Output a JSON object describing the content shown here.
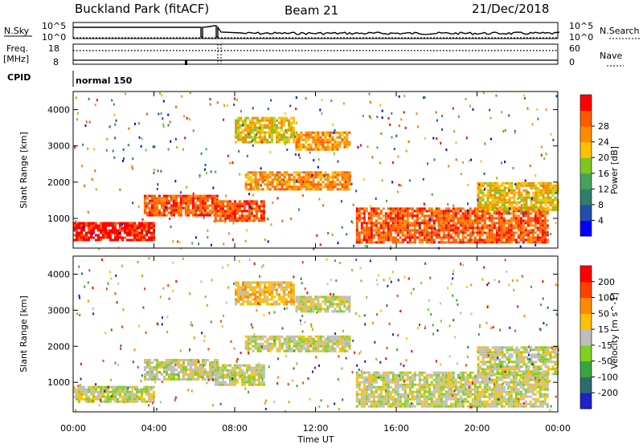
{
  "header": {
    "left": "Buckland Park (fitACF)",
    "center": "Beam 21",
    "right": "21/Dec/2018"
  },
  "strip": {
    "nsky_label": "N.Sky",
    "nsky_ticks": [
      "10^5",
      "10^0"
    ],
    "nsearch_label": "N.Search",
    "nsearch_ticks": [
      "10^5",
      "10^0"
    ],
    "freq_label_1": "Freq.",
    "freq_label_2": "[MHz]",
    "freq_ticks": [
      "18",
      "8"
    ],
    "nave_label": "Nave",
    "nave_ticks": [
      "60",
      "0"
    ],
    "cpid_label": "CPID",
    "cpid_value": "normal 150"
  },
  "axes": {
    "xlabel": "Time UT",
    "ylabel": "Slant Range [km]",
    "xticks": [
      "00:00",
      "04:00",
      "08:00",
      "12:00",
      "16:00",
      "20:00",
      "00:00"
    ],
    "yticks": [
      "1000",
      "2000",
      "3000",
      "4000"
    ]
  },
  "colorbars": {
    "power": {
      "label": "Power [dB]",
      "ticks": [
        "4",
        "8",
        "12",
        "16",
        "20",
        "24",
        "28"
      ],
      "colors": [
        "#0000ff",
        "#1f4fa8",
        "#2e7f6e",
        "#44a25a",
        "#7fc61f",
        "#ffc000",
        "#ff8a00",
        "#ff5a00",
        "#ff0000"
      ]
    },
    "velocity": {
      "label": "Velocity [m s^-1]",
      "ticks": [
        "200",
        "100",
        "50",
        "15",
        "-15",
        "-50",
        "-100",
        "-200"
      ],
      "colors": [
        "#2020c8",
        "#2e6c6a",
        "#3aa43c",
        "#7fd01f",
        "#bebebe",
        "#ffc000",
        "#ff8a00",
        "#ff4000",
        "#ff0000"
      ]
    }
  },
  "chart_data": [
    {
      "type": "heatmap",
      "name": "power",
      "x_range_hours": [
        0,
        24
      ],
      "ylim": [
        180,
        4500
      ],
      "regions": [
        {
          "t": [
            0.0,
            4.0
          ],
          "r": [
            400,
            900
          ],
          "level": 8
        },
        {
          "t": [
            3.5,
            7.2
          ],
          "r": [
            1050,
            1650
          ],
          "level": 7
        },
        {
          "t": [
            7.0,
            9.5
          ],
          "r": [
            900,
            1500
          ],
          "level": 7
        },
        {
          "t": [
            8.5,
            13.8
          ],
          "r": [
            1800,
            2300
          ],
          "level": 6
        },
        {
          "t": [
            8.0,
            11.0
          ],
          "r": [
            3100,
            3800
          ],
          "level": 5
        },
        {
          "t": [
            11.0,
            13.8
          ],
          "r": [
            2900,
            3400
          ],
          "level": 6
        },
        {
          "t": [
            14.0,
            23.5
          ],
          "r": [
            300,
            1300
          ],
          "level": 7
        },
        {
          "t": [
            20.0,
            24.0
          ],
          "r": [
            1200,
            2000
          ],
          "level": 5
        }
      ]
    },
    {
      "type": "heatmap",
      "name": "velocity",
      "x_range_hours": [
        0,
        24
      ],
      "ylim": [
        180,
        4500
      ],
      "regions": [
        {
          "t": [
            0.0,
            4.0
          ],
          "r": [
            400,
            900
          ],
          "level": 4
        },
        {
          "t": [
            3.5,
            7.2
          ],
          "r": [
            1050,
            1650
          ],
          "level": 4
        },
        {
          "t": [
            7.0,
            9.5
          ],
          "r": [
            900,
            1500
          ],
          "level": 4
        },
        {
          "t": [
            8.5,
            13.8
          ],
          "r": [
            1800,
            2300
          ],
          "level": 4
        },
        {
          "t": [
            8.0,
            11.0
          ],
          "r": [
            3100,
            3800
          ],
          "level": 5
        },
        {
          "t": [
            11.0,
            13.8
          ],
          "r": [
            2900,
            3400
          ],
          "level": 4
        },
        {
          "t": [
            14.0,
            23.5
          ],
          "r": [
            300,
            1300
          ],
          "level": 4
        },
        {
          "t": [
            20.0,
            24.0
          ],
          "r": [
            1200,
            2000
          ],
          "level": 4
        }
      ]
    }
  ]
}
